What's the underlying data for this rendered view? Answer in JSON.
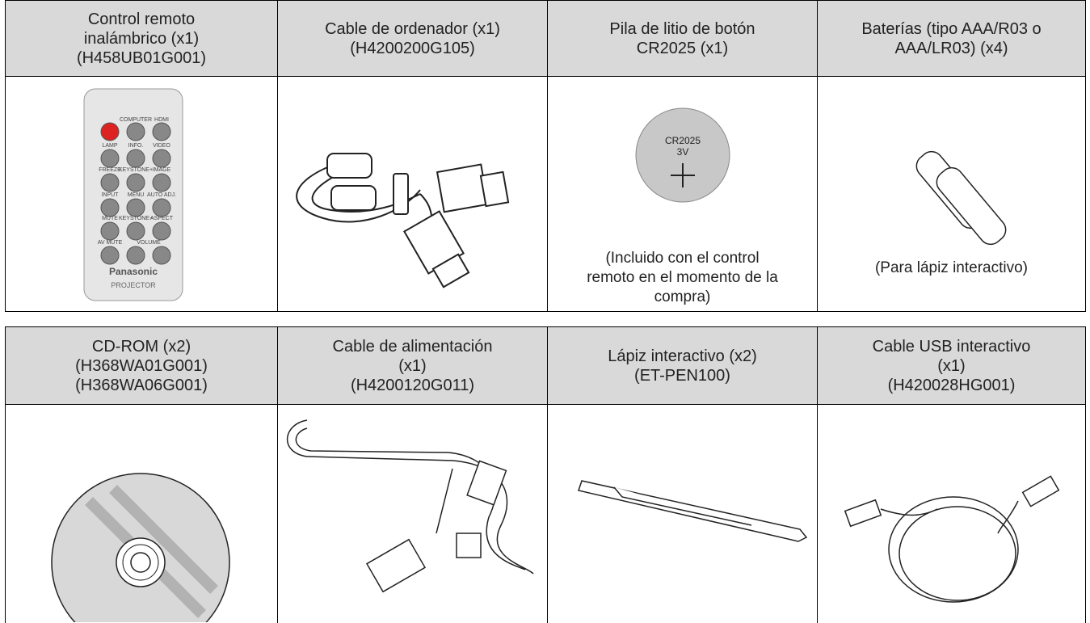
{
  "tables": [
    {
      "items": [
        {
          "header": [
            "Control remoto",
            "inalámbrico (x1)",
            "(H458UB01G001)"
          ]
        },
        {
          "header": [
            "Cable de ordenador (x1)",
            "(H4200200G105)"
          ]
        },
        {
          "header": [
            "Pila de litio de botón",
            "CR2025 (x1)"
          ],
          "caption": [
            "(Incluido con el control",
            "remoto en el momento de la",
            "compra)"
          ]
        },
        {
          "header": [
            "Baterías (tipo AAA/R03 o",
            "AAA/LR03) (x4)"
          ],
          "caption": [
            "(Para lápiz interactivo)"
          ]
        }
      ]
    },
    {
      "items": [
        {
          "header": [
            "CD-ROM (x2)",
            "(H368WA01G001)",
            "(H368WA06G001)"
          ]
        },
        {
          "header": [
            "Cable de alimentación",
            "(x1)",
            "(H4200120G011)"
          ]
        },
        {
          "header": [
            "Lápiz interactivo (x2)",
            "(ET-PEN100)"
          ]
        },
        {
          "header": [
            "Cable USB interactivo",
            "(x1)",
            "(H420028HG001)"
          ]
        }
      ]
    }
  ],
  "remote": {
    "labels": [
      "COMPUTER",
      "HDMI",
      "LAMP",
      "INFO.",
      "VIDEO",
      "FREEZE",
      "KEYSTONE+",
      "IMAGE",
      "INPUT",
      "MENU",
      "AUTO ADJ.",
      "MUTE",
      "KEYSTONE−",
      "ASPECT",
      "AV MUTE",
      "VOLUME"
    ],
    "brand": "Panasonic",
    "model": "PROJECTOR"
  },
  "battery": {
    "model": "CR2025",
    "voltage": "3V"
  }
}
